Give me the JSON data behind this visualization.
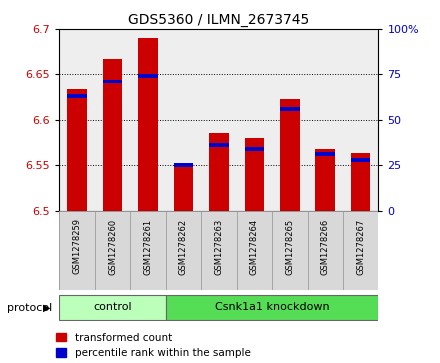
{
  "title": "GDS5360 / ILMN_2673745",
  "samples": [
    "GSM1278259",
    "GSM1278260",
    "GSM1278261",
    "GSM1278262",
    "GSM1278263",
    "GSM1278264",
    "GSM1278265",
    "GSM1278266",
    "GSM1278267"
  ],
  "red_values": [
    6.634,
    6.667,
    6.69,
    6.55,
    6.585,
    6.58,
    6.623,
    6.568,
    6.563
  ],
  "blue_values": [
    62,
    70,
    73,
    24,
    35,
    33,
    55,
    30,
    27
  ],
  "ylim_left": [
    6.5,
    6.7
  ],
  "ylim_right": [
    0,
    100
  ],
  "yticks_left": [
    6.5,
    6.55,
    6.6,
    6.65,
    6.7
  ],
  "ytick_labels_left": [
    "6.5",
    "6.55",
    "6.6",
    "6.65",
    "6.7"
  ],
  "yticks_right": [
    0,
    25,
    50,
    75,
    100
  ],
  "ytick_labels_right": [
    "0",
    "25",
    "50",
    "75",
    "100%"
  ],
  "protocol_groups": [
    {
      "label": "control",
      "start": 0,
      "end": 2
    },
    {
      "label": "Csnk1a1 knockdown",
      "start": 3,
      "end": 8
    }
  ],
  "protocol_label": "protocol",
  "red_color": "#cc0000",
  "blue_color": "#0000cc",
  "bar_width": 0.55,
  "baseline": 6.5,
  "control_color": "#bbffbb",
  "knockdown_color": "#55dd55",
  "plot_bg_color": "#eeeeee",
  "sample_box_color": "#d8d8d8",
  "legend_red": "transformed count",
  "legend_blue": "percentile rank within the sample",
  "title_fontsize": 10,
  "axis_fontsize": 8,
  "sample_fontsize": 6,
  "legend_fontsize": 7.5
}
